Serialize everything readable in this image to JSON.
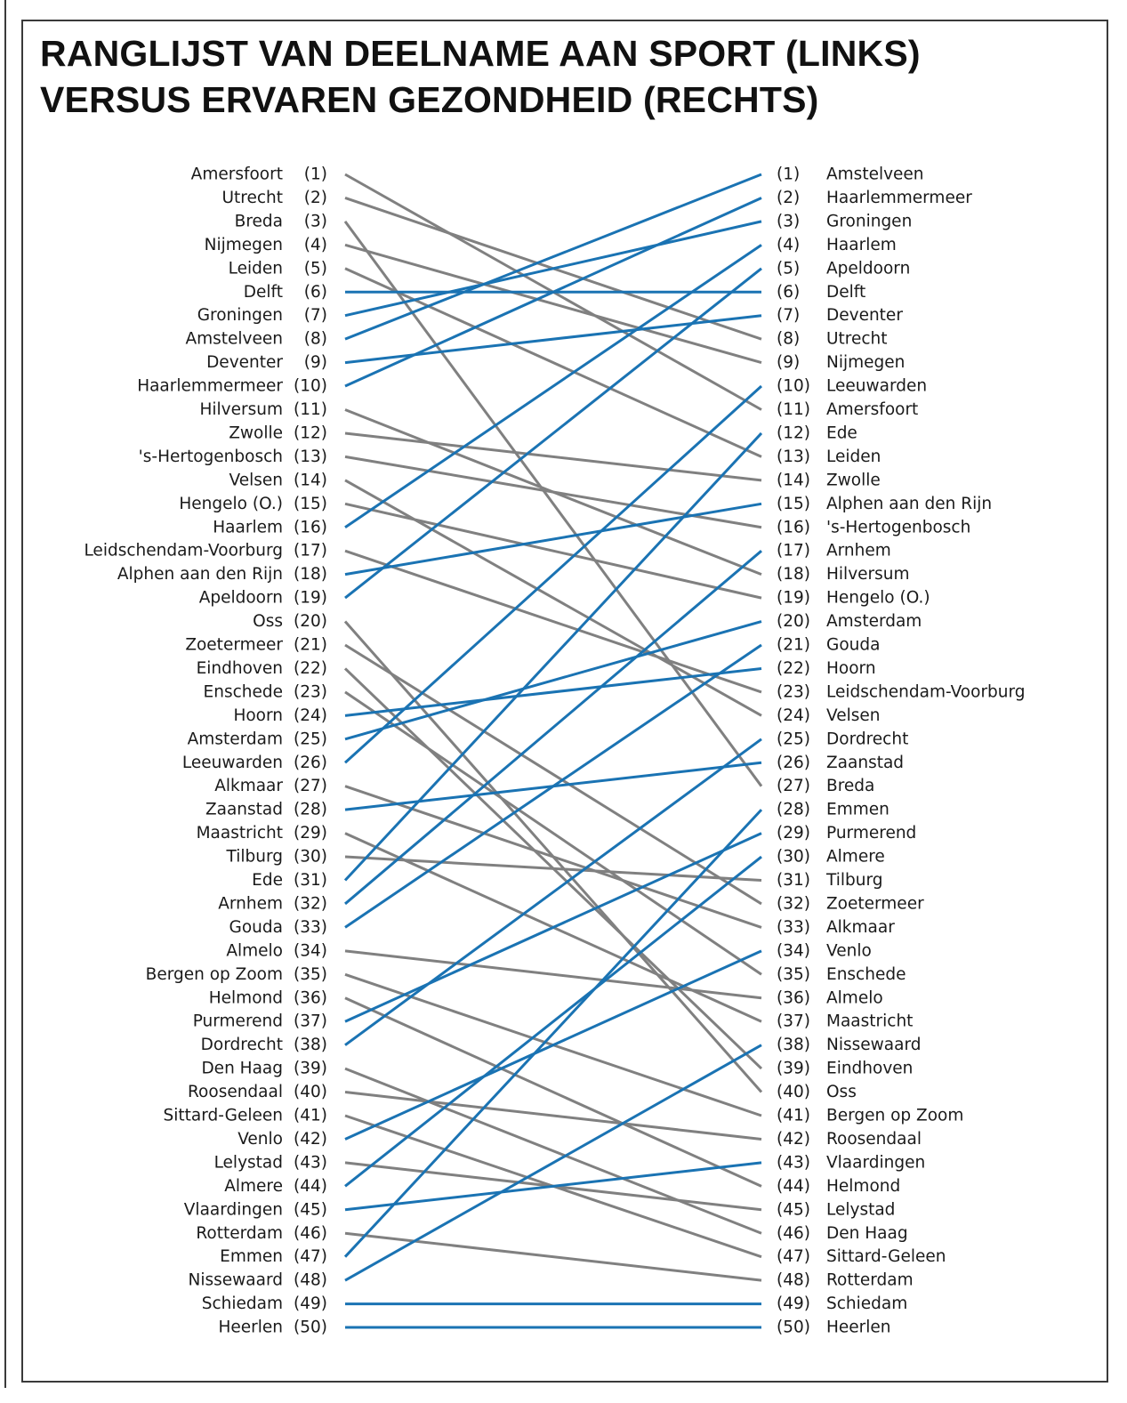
{
  "chart_data": {
    "type": "slope",
    "title_lines": [
      "RANGLIJST VAN DEELNAME AAN SPORT (LINKS)",
      "VERSUS ERVAREN GEZONDHEID (RECHTS)"
    ],
    "colors": {
      "rank_rises": "#1a73b3",
      "rank_falls": "#808080",
      "text": "#1a1a1a"
    },
    "left_ranking": [
      "Amersfoort",
      "Utrecht",
      "Breda",
      "Nijmegen",
      "Leiden",
      "Delft",
      "Groningen",
      "Amstelveen",
      "Deventer",
      "Haarlemmermeer",
      "Hilversum",
      "Zwolle",
      "'s-Hertogenbosch",
      "Velsen",
      "Hengelo (O.)",
      "Haarlem",
      "Leidschendam-Voorburg",
      "Alphen aan den Rijn",
      "Apeldoorn",
      "Oss",
      "Zoetermeer",
      "Eindhoven",
      "Enschede",
      "Hoorn",
      "Amsterdam",
      "Leeuwarden",
      "Alkmaar",
      "Zaanstad",
      "Maastricht",
      "Tilburg",
      "Ede",
      "Arnhem",
      "Gouda",
      "Almelo",
      "Bergen op Zoom",
      "Helmond",
      "Purmerend",
      "Dordrecht",
      "Den Haag",
      "Roosendaal",
      "Sittard-Geleen",
      "Venlo",
      "Lelystad",
      "Almere",
      "Vlaardingen",
      "Rotterdam",
      "Emmen",
      "Nissewaard",
      "Schiedam",
      "Heerlen"
    ],
    "right_ranking": [
      "Amstelveen",
      "Haarlemmermeer",
      "Groningen",
      "Haarlem",
      "Apeldoorn",
      "Delft",
      "Deventer",
      "Utrecht",
      "Nijmegen",
      "Leeuwarden",
      "Amersfoort",
      "Ede",
      "Leiden",
      "Zwolle",
      "Alphen aan den Rijn",
      "'s-Hertogenbosch",
      "Arnhem",
      "Hilversum",
      "Hengelo (O.)",
      "Amsterdam",
      "Gouda",
      "Hoorn",
      "Leidschendam-Voorburg",
      "Velsen",
      "Dordrecht",
      "Zaanstad",
      "Breda",
      "Emmen",
      "Purmerend",
      "Almere",
      "Tilburg",
      "Zoetermeer",
      "Alkmaar",
      "Venlo",
      "Enschede",
      "Almelo",
      "Maastricht",
      "Nissewaard",
      "Eindhoven",
      "Oss",
      "Bergen op Zoom",
      "Roosendaal",
      "Vlaardingen",
      "Helmond",
      "Lelystad",
      "Den Haag",
      "Sittard-Geleen",
      "Rotterdam",
      "Schiedam",
      "Heerlen"
    ]
  }
}
